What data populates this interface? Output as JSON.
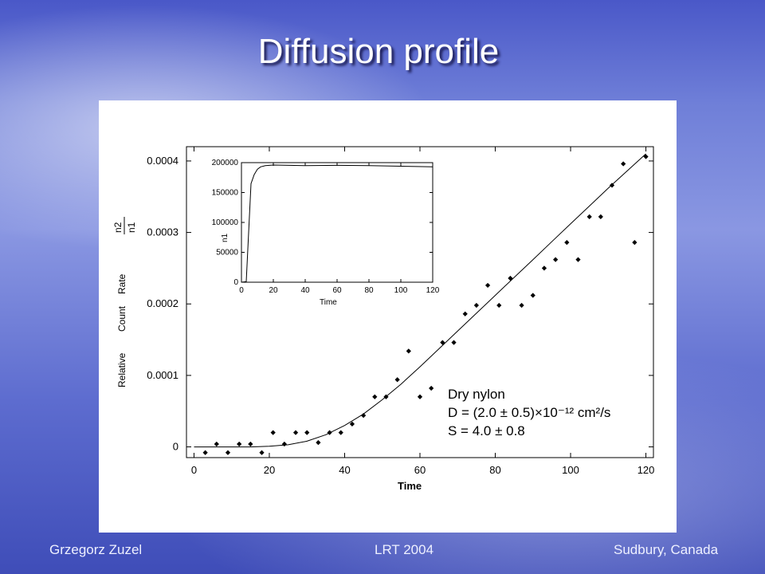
{
  "slide": {
    "title": "Diffusion profile",
    "footer_left": "Grzegorz Zuzel",
    "footer_center": "LRT 2004",
    "footer_right": "Sudbury, Canada"
  },
  "annotation": {
    "line1": "Dry nylon",
    "line2": "D = (2.0 ± 0.5)×10⁻¹² cm²/s",
    "line3": "S = 4.0 ± 0.8"
  },
  "chart_data": [
    {
      "type": "scatter",
      "xlabel": "Time",
      "ylabel_words": [
        "Relative",
        "Count",
        "Rate"
      ],
      "ylabel_fraction": {
        "numerator": "n2",
        "denominator": "n1"
      },
      "xlim": [
        -2,
        122
      ],
      "ylim": [
        -1.5e-05,
        0.00042
      ],
      "xticks": [
        0,
        20,
        40,
        60,
        80,
        100,
        120
      ],
      "yticks": [
        0,
        0.0001,
        0.0002,
        0.0003,
        0.0004
      ],
      "ytick_labels": [
        "0",
        "0.0001",
        "0.0002",
        "0.0003",
        "0.0004"
      ],
      "series": [
        {
          "kind": "points",
          "x": [
            3,
            6,
            9,
            12,
            15,
            18,
            21,
            24,
            27,
            30,
            33,
            36,
            39,
            42,
            45,
            48,
            51,
            54,
            57,
            60,
            63,
            66,
            69,
            72,
            75,
            78,
            81,
            84,
            87,
            90,
            93,
            96,
            99,
            102,
            105,
            108,
            111,
            114,
            117,
            120
          ],
          "y": [
            -8e-06,
            4e-06,
            -8e-06,
            4e-06,
            4e-06,
            -8e-06,
            2e-05,
            4e-06,
            2e-05,
            2e-05,
            6e-06,
            2e-05,
            2e-05,
            3.2e-05,
            4.4e-05,
            7e-05,
            7e-05,
            9.4e-05,
            0.000134,
            7e-05,
            8.2e-05,
            0.000146,
            0.000146,
            0.000186,
            0.000198,
            0.000226,
            0.000198,
            0.000236,
            0.000198,
            0.000212,
            0.00025,
            0.000262,
            0.000286,
            0.000262,
            0.000322,
            0.000322,
            0.000366,
            0.000396,
            0.000286,
            0.000406
          ]
        },
        {
          "kind": "fit-line",
          "x": [
            0,
            5,
            10,
            15,
            20,
            25,
            30,
            35,
            40,
            45,
            50,
            55,
            60,
            65,
            70,
            75,
            80,
            85,
            90,
            95,
            100,
            105,
            110,
            115,
            120
          ],
          "y": [
            0,
            0,
            0,
            0,
            1e-06,
            3e-06,
            8e-06,
            1.7e-05,
            3e-05,
            4.6e-05,
            6.6e-05,
            8.8e-05,
            0.000112,
            0.000137,
            0.000162,
            0.000187,
            0.000212,
            0.000237,
            0.000262,
            0.000287,
            0.000312,
            0.000337,
            0.000362,
            0.000386,
            0.00041
          ]
        }
      ]
    },
    {
      "type": "line",
      "inset": true,
      "xlabel": "Time",
      "ylabel": "n1",
      "xlim": [
        0,
        120
      ],
      "ylim": [
        0,
        200000
      ],
      "xticks": [
        0,
        20,
        40,
        60,
        80,
        100,
        120
      ],
      "yticks": [
        0,
        50000,
        100000,
        150000,
        200000
      ],
      "ytick_labels": [
        "0",
        "50000",
        "100000",
        "150000",
        "200000"
      ],
      "series": [
        {
          "x": [
            0,
            3,
            6,
            8,
            10,
            12,
            15,
            20,
            30,
            40,
            60,
            80,
            100,
            110,
            120
          ],
          "y": [
            0,
            1000,
            165000,
            180000,
            189000,
            193000,
            195000,
            196000,
            195500,
            195000,
            195500,
            195000,
            194000,
            193500,
            193000
          ]
        }
      ]
    }
  ]
}
